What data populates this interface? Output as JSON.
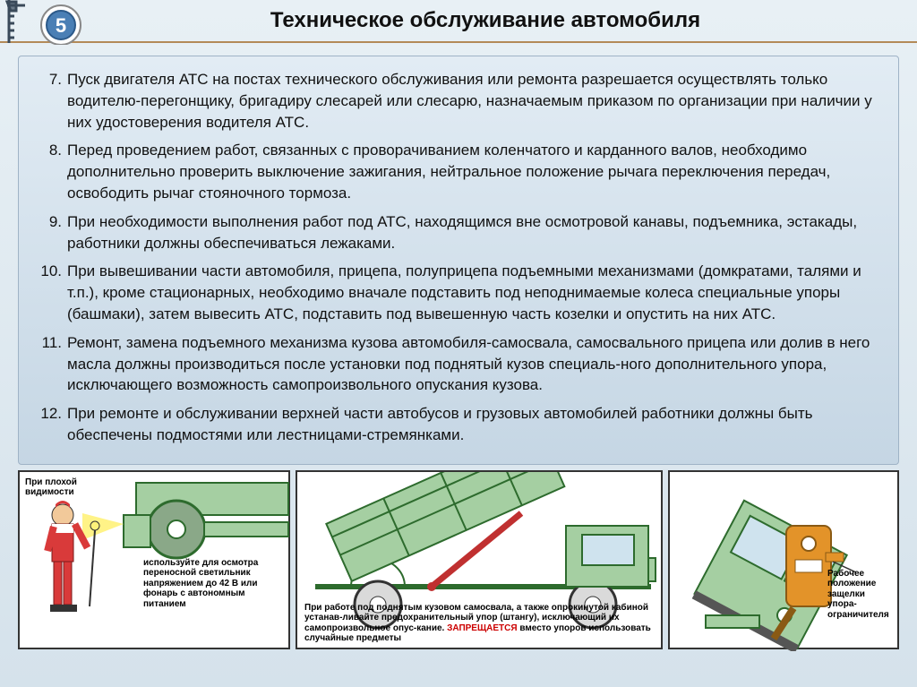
{
  "header": {
    "title": "Техническое обслуживание автомобиля",
    "badge_number": "5",
    "title_color": "#111111",
    "title_fontsize": 24,
    "rule_color": "#b38a58"
  },
  "panel": {
    "background_top": "#e2ecf4",
    "background_bottom": "#c5d6e4",
    "border_color": "#9fb3c6",
    "text_color": "#111111",
    "fontsize": 17,
    "items": [
      {
        "n": "7.",
        "text": "Пуск двигателя АТС на постах технического обслуживания или ремонта разрешается осуществлять только водителю-перегонщику, бригадиру слесарей или слесарю, назначаемым приказом по организации при наличии у них удостоверения водителя АТС."
      },
      {
        "n": "8.",
        "text": "Перед проведением работ, связанных с проворачиванием коленчатого и карданного валов, необходимо дополнительно проверить выключение зажигания, нейтральное положение рычага переключения передач, освободить рычаг стояночного тормоза."
      },
      {
        "n": "9.",
        "text": "При необходимости выполнения работ под АТС, находящимся вне осмотровой канавы, подъемника, эстакады, работники должны обеспечиваться лежаками."
      },
      {
        "n": "10.",
        "text": "При вывешивании части автомобиля, прицепа, полуприцепа подъемными механизмами (домкратами, талями и т.п.), кроме стационарных, необходимо вначале подставить под неподнимаемые колеса специальные упоры (башмаки), затем вывесить АТС, подставить под вывешенную часть козелки и опустить на них АТС."
      },
      {
        "n": "11.",
        "text": "Ремонт, замена подъемного механизма кузова автомобиля-самосвала, самосвального прицепа или долив в него масла должны производиться после установки под поднятый кузов специаль-ного дополнительного упора, исключающего возможность самопроизвольного опускания кузова."
      },
      {
        "n": "12.",
        "text": "При ремонте и обслуживании верхней части автобусов и грузовых автомобилей работники должны быть обеспечены подмостями или лестницами-стремянками."
      }
    ]
  },
  "illustrations": {
    "box1": {
      "top_label": "При плохой видимости",
      "caption": "используйте для осмотра переносной светильник напряжением до 42 В или фонарь с автономным питанием",
      "worker_color": "#d93a3a",
      "truck_color": "#a5cfa2"
    },
    "box2": {
      "caption_line1": "При работе под поднятым кузовом самосвала, а также опрокинутой кабиной устанав-ливайте предохранительный упор (штангу), исключающий их самопроизвольное опус-кание.",
      "caption_line2_prefix": "ЗАПРЕЩАЕТСЯ",
      "caption_line2_rest": " вместо упоров использовать случайные предметы",
      "truck_color": "#a5cfa2",
      "strut_color": "#c03030"
    },
    "box3": {
      "caption": "Рабочее положение защелки упора-ограничителя",
      "cab_color": "#a5cfa2",
      "latch_color": "#e39329"
    },
    "cap_fontsize": 10,
    "border_color": "#333333"
  },
  "page_bg_top": "#e8f0f5",
  "page_bg_bottom": "#d5e2eb"
}
